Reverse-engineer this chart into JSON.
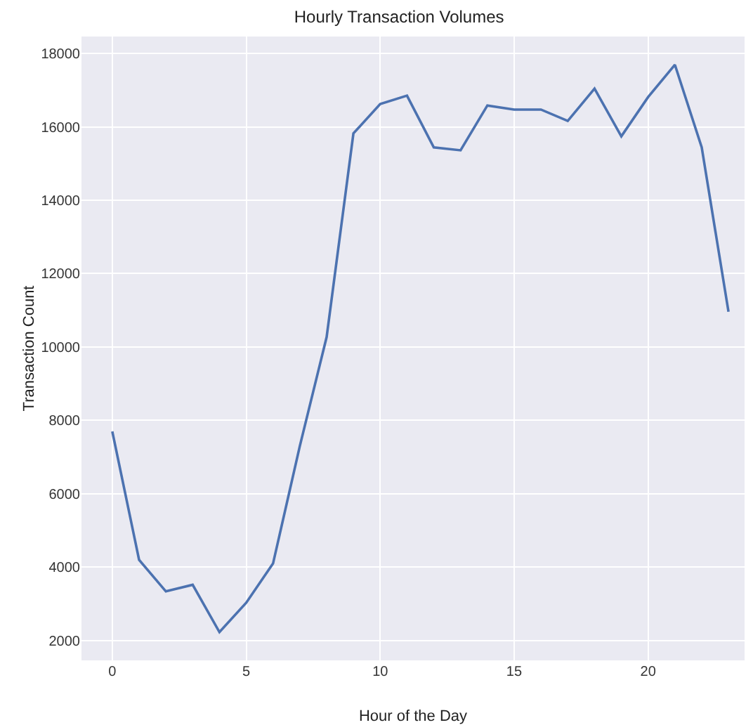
{
  "chart_data": {
    "type": "line",
    "title": "Hourly Transaction Volumes",
    "xlabel": "Hour of the Day",
    "ylabel": "Transaction Count",
    "x": [
      0,
      1,
      2,
      3,
      4,
      5,
      6,
      7,
      8,
      9,
      10,
      11,
      12,
      13,
      14,
      15,
      16,
      17,
      18,
      19,
      20,
      21,
      22,
      23
    ],
    "series": [
      {
        "color": "#4c72b0",
        "values": [
          7700,
          4200,
          3340,
          3520,
          2230,
          3030,
          4100,
          7300,
          10270,
          15820,
          16620,
          16850,
          15440,
          15360,
          16580,
          16470,
          16470,
          16160,
          17040,
          15740,
          16810,
          17690,
          15440,
          10960
        ]
      }
    ],
    "xlim": [
      -1.15,
      23.6
    ],
    "xticks": [
      0,
      5,
      10,
      15,
      20
    ],
    "ylim": [
      1460,
      18460
    ],
    "yticks": [
      2000,
      4000,
      6000,
      8000,
      10000,
      12000,
      14000,
      16000,
      18000
    ],
    "grid": true,
    "marker": "none",
    "line_style": "solid"
  }
}
